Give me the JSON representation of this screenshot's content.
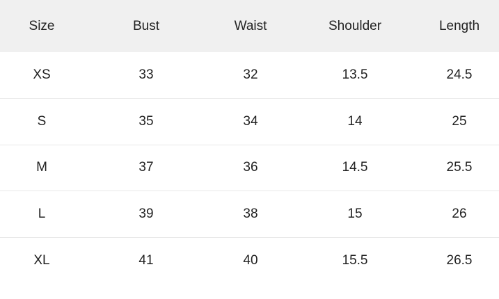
{
  "table": {
    "headers": [
      "Size",
      "Bust",
      "Waist",
      "Shoulder",
      "Length"
    ],
    "rows": [
      [
        "XS",
        "33",
        "32",
        "13.5",
        "24.5"
      ],
      [
        "S",
        "35",
        "34",
        "14",
        "25"
      ],
      [
        "M",
        "37",
        "36",
        "14.5",
        "25.5"
      ],
      [
        "L",
        "39",
        "38",
        "15",
        "26"
      ],
      [
        "XL",
        "41",
        "40",
        "15.5",
        "26.5"
      ]
    ]
  },
  "colors": {
    "header_bg": "#f0f0f0",
    "text": "#222222",
    "divider": "#e8e8e8"
  }
}
